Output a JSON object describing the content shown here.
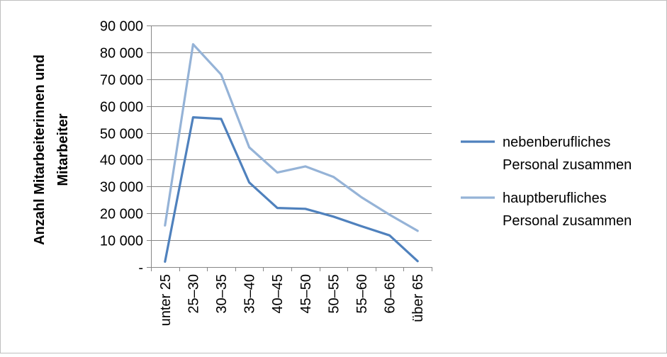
{
  "chart_data": {
    "type": "line",
    "title": "",
    "ylabel": [
      "Anzahl Mitarbeiterinnen und",
      "Mitarbeiter"
    ],
    "xlabel": "",
    "categories": [
      "unter 25",
      "25–30",
      "30–35",
      "35–40",
      "40–45",
      "45–50",
      "50–55",
      "55–60",
      "60–65",
      "über 65"
    ],
    "ylim": [
      0,
      90000
    ],
    "yticks": [
      {
        "value": 0,
        "label": "-"
      },
      {
        "value": 10000,
        "label": "10 000"
      },
      {
        "value": 20000,
        "label": "20 000"
      },
      {
        "value": 30000,
        "label": "30 000"
      },
      {
        "value": 40000,
        "label": "40 000"
      },
      {
        "value": 50000,
        "label": "50 000"
      },
      {
        "value": 60000,
        "label": "60 000"
      },
      {
        "value": 70000,
        "label": "70 000"
      },
      {
        "value": 80000,
        "label": "80 000"
      },
      {
        "value": 90000,
        "label": "90 000"
      }
    ],
    "grid": true,
    "legend_position": "right",
    "series": [
      {
        "name": "nebenberufliches Personal zusammen",
        "label_lines": [
          "nebenberufliches",
          "Personal zusammen"
        ],
        "color": "#4F81BD",
        "values": [
          2000,
          55800,
          55200,
          31500,
          22000,
          21700,
          18800,
          15200,
          11800,
          2200
        ]
      },
      {
        "name": "hauptberufliches Personal zusammen",
        "label_lines": [
          "hauptberufliches",
          "Personal zusammen"
        ],
        "color": "#95B3D7",
        "values": [
          15500,
          83000,
          71700,
          44600,
          35200,
          37500,
          33600,
          26000,
          19500,
          13500
        ]
      }
    ]
  }
}
